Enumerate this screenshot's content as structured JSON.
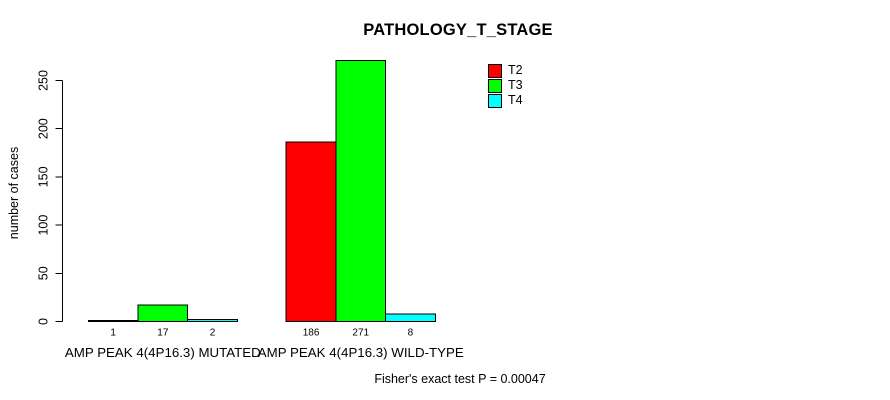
{
  "chart_data": {
    "type": "bar",
    "title": "PATHOLOGY_T_STAGE",
    "ylabel": "number of cases",
    "xlabel": "",
    "footer_note": "Fisher's exact test P = 0.00047",
    "categories": [
      "AMP PEAK 4(4P16.3) MUTATED",
      "AMP PEAK 4(4P16.3) WILD-TYPE"
    ],
    "series": [
      {
        "name": "T2",
        "color": "#ff0000",
        "values": [
          1,
          186
        ]
      },
      {
        "name": "T3",
        "color": "#00ff00",
        "values": [
          17,
          271
        ]
      },
      {
        "name": "T4",
        "color": "#00ffff",
        "values": [
          2,
          8
        ]
      }
    ],
    "yticks": [
      0,
      50,
      100,
      150,
      200,
      250
    ],
    "ylim": [
      0,
      250
    ],
    "grid": false,
    "show_bar_values": true,
    "bar_border_color": "#000000",
    "legend_position": "top-right"
  }
}
